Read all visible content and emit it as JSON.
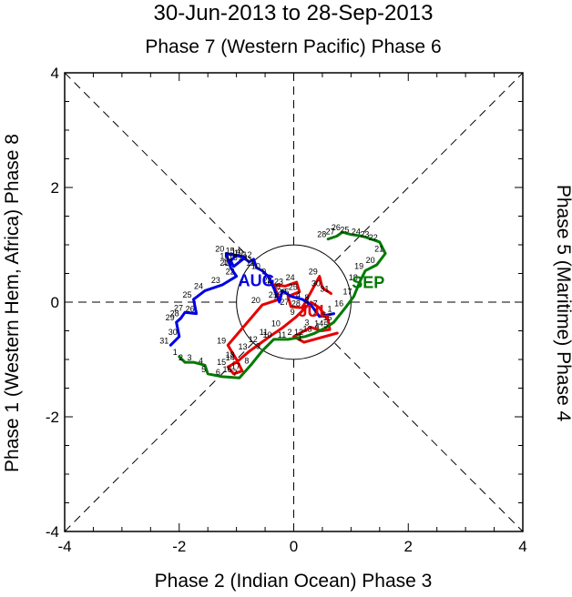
{
  "chart_data": {
    "type": "line",
    "title": "30-Jun-2013 to 28-Sep-2013",
    "top_label": "Phase 7 (Western Pacific) Phase 6",
    "bottom_label": "Phase 2 (Indian Ocean) Phase 3",
    "left_label": "Phase 1 (Western Hem, Africa) Phase 8",
    "right_label": "Phase 5 (Maritime) Phase 4",
    "xlim": [
      -4,
      4
    ],
    "ylim": [
      -4,
      4
    ],
    "xticks": [
      -4,
      -2,
      0,
      2,
      4
    ],
    "yticks": [
      -4,
      -2,
      0,
      2,
      4
    ],
    "tick_labels": [
      "-4",
      "-2",
      "0",
      "2",
      "4"
    ],
    "unit_circle_radius": 1,
    "series": [
      {
        "label": "JUL",
        "color": "#e60000",
        "points": [
          {
            "x": 0.76,
            "y": -0.54,
            "d": ""
          },
          {
            "x": 0.18,
            "y": -0.7,
            "d": "1"
          },
          {
            "x": 0.0,
            "y": -0.6,
            "d": "2"
          },
          {
            "x": 0.3,
            "y": -0.44,
            "d": "3"
          },
          {
            "x": 0.48,
            "y": -0.5,
            "d": "4"
          },
          {
            "x": 0.63,
            "y": -0.48,
            "d": "5"
          },
          {
            "x": 0.6,
            "y": -0.3,
            "d": "6"
          },
          {
            "x": 0.45,
            "y": -0.1,
            "d": "7"
          },
          {
            "x": 0.3,
            "y": 0.0,
            "d": "8"
          },
          {
            "x": 0.05,
            "y": -0.25,
            "d": "9"
          },
          {
            "x": -0.2,
            "y": -0.45,
            "d": "10"
          },
          {
            "x": -0.42,
            "y": -0.6,
            "d": "11"
          },
          {
            "x": -0.6,
            "y": -0.73,
            "d": "12"
          },
          {
            "x": -0.78,
            "y": -0.86,
            "d": "13"
          },
          {
            "x": -1.0,
            "y": -1.05,
            "d": "14"
          },
          {
            "x": -1.15,
            "y": -1.13,
            "d": "15"
          },
          {
            "x": -1.05,
            "y": -1.25,
            "d": "16"
          },
          {
            "x": -0.9,
            "y": -1.2,
            "d": "17"
          },
          {
            "x": -1.0,
            "y": -1.0,
            "d": "18"
          },
          {
            "x": -1.15,
            "y": -0.75,
            "d": "19"
          },
          {
            "x": -0.55,
            "y": -0.05,
            "d": "20"
          },
          {
            "x": -0.25,
            "y": 0.05,
            "d": "21"
          },
          {
            "x": -0.35,
            "y": 0.3,
            "d": "22"
          },
          {
            "x": -0.15,
            "y": 0.28,
            "d": "23"
          },
          {
            "x": 0.05,
            "y": 0.35,
            "d": "24"
          },
          {
            "x": 0.1,
            "y": 0.18,
            "d": "25"
          },
          {
            "x": -0.1,
            "y": 0.1,
            "d": "26"
          },
          {
            "x": -0.05,
            "y": -0.08,
            "d": "27"
          },
          {
            "x": 0.15,
            "y": -0.1,
            "d": "28"
          },
          {
            "x": 0.45,
            "y": 0.45,
            "d": "29"
          },
          {
            "x": 0.5,
            "y": 0.25,
            "d": "30"
          },
          {
            "x": 0.65,
            "y": 0.15,
            "d": "31"
          }
        ]
      },
      {
        "label": "AUG",
        "color": "#0000e6",
        "points": [
          {
            "x": 0.7,
            "y": -0.2,
            "d": "1"
          },
          {
            "x": 0.45,
            "y": -0.25,
            "d": "2"
          },
          {
            "x": 0.3,
            "y": -0.05,
            "d": "3"
          },
          {
            "x": 0.15,
            "y": 0.05,
            "d": "4"
          },
          {
            "x": -0.05,
            "y": 0.1,
            "d": "5"
          },
          {
            "x": -0.2,
            "y": 0.2,
            "d": "6"
          },
          {
            "x": -0.25,
            "y": 0.0,
            "d": "7"
          },
          {
            "x": -0.35,
            "y": 0.25,
            "d": "8"
          },
          {
            "x": -0.45,
            "y": 0.45,
            "d": "9"
          },
          {
            "x": -0.55,
            "y": 0.55,
            "d": "10"
          },
          {
            "x": -0.65,
            "y": 0.6,
            "d": "11"
          },
          {
            "x": -0.7,
            "y": 0.75,
            "d": "12"
          },
          {
            "x": -0.78,
            "y": 0.7,
            "d": "13"
          },
          {
            "x": -0.9,
            "y": 0.8,
            "d": "14"
          },
          {
            "x": -1.0,
            "y": 0.82,
            "d": "15"
          },
          {
            "x": -1.1,
            "y": 0.72,
            "d": "16"
          },
          {
            "x": -1.05,
            "y": 0.62,
            "d": "17"
          },
          {
            "x": -0.95,
            "y": 0.7,
            "d": "18"
          },
          {
            "x": -0.85,
            "y": 0.78,
            "d": "19"
          },
          {
            "x": -1.18,
            "y": 0.85,
            "d": "20"
          },
          {
            "x": -1.1,
            "y": 0.6,
            "d": "21"
          },
          {
            "x": -1.0,
            "y": 0.45,
            "d": "22"
          },
          {
            "x": -1.25,
            "y": 0.3,
            "d": "23"
          },
          {
            "x": -1.55,
            "y": 0.2,
            "d": "24"
          },
          {
            "x": -1.75,
            "y": 0.05,
            "d": "25"
          },
          {
            "x": -1.7,
            "y": -0.2,
            "d": "26"
          },
          {
            "x": -1.9,
            "y": -0.18,
            "d": "27"
          },
          {
            "x": -1.97,
            "y": -0.28,
            "d": "28"
          },
          {
            "x": -2.05,
            "y": -0.35,
            "d": "29"
          },
          {
            "x": -2.0,
            "y": -0.6,
            "d": "30"
          },
          {
            "x": -2.15,
            "y": -0.75,
            "d": "31"
          }
        ]
      },
      {
        "label": "SEP",
        "color": "#007a00",
        "points": [
          {
            "x": -2.0,
            "y": -0.95,
            "d": "1"
          },
          {
            "x": -1.9,
            "y": -1.05,
            "d": "2"
          },
          {
            "x": -1.75,
            "y": -1.05,
            "d": "3"
          },
          {
            "x": -1.55,
            "y": -1.1,
            "d": "4"
          },
          {
            "x": -1.5,
            "y": -1.25,
            "d": "5"
          },
          {
            "x": -1.25,
            "y": -1.3,
            "d": "6"
          },
          {
            "x": -0.95,
            "y": -1.32,
            "d": "7"
          },
          {
            "x": -0.75,
            "y": -1.1,
            "d": "8"
          },
          {
            "x": -0.55,
            "y": -0.85,
            "d": "9"
          },
          {
            "x": -0.35,
            "y": -0.65,
            "d": "10"
          },
          {
            "x": -0.1,
            "y": -0.65,
            "d": "11"
          },
          {
            "x": 0.2,
            "y": -0.6,
            "d": "12"
          },
          {
            "x": 0.35,
            "y": -0.55,
            "d": "13"
          },
          {
            "x": 0.55,
            "y": -0.45,
            "d": "14"
          },
          {
            "x": 0.7,
            "y": -0.35,
            "d": "15"
          },
          {
            "x": 0.9,
            "y": -0.1,
            "d": "16"
          },
          {
            "x": 1.05,
            "y": 0.1,
            "d": "17"
          },
          {
            "x": 1.15,
            "y": 0.35,
            "d": "18"
          },
          {
            "x": 1.25,
            "y": 0.55,
            "d": "19"
          },
          {
            "x": 1.45,
            "y": 0.65,
            "d": "20"
          },
          {
            "x": 1.6,
            "y": 0.85,
            "d": "21"
          },
          {
            "x": 1.5,
            "y": 1.05,
            "d": "22"
          },
          {
            "x": 1.35,
            "y": 1.1,
            "d": "23"
          },
          {
            "x": 1.2,
            "y": 1.15,
            "d": "24"
          },
          {
            "x": 1.0,
            "y": 1.18,
            "d": "25"
          },
          {
            "x": 0.85,
            "y": 1.22,
            "d": "26"
          },
          {
            "x": 0.75,
            "y": 1.15,
            "d": "27"
          },
          {
            "x": 0.6,
            "y": 1.1,
            "d": "28"
          }
        ]
      }
    ],
    "month_labels": [
      {
        "text": "JUL",
        "x": 0.35,
        "y": -0.25,
        "color": "#e60000"
      },
      {
        "text": "AUG",
        "x": -0.65,
        "y": 0.28,
        "color": "#0000e6"
      },
      {
        "text": "SEP",
        "x": 1.3,
        "y": 0.25,
        "color": "#007a00"
      }
    ]
  }
}
